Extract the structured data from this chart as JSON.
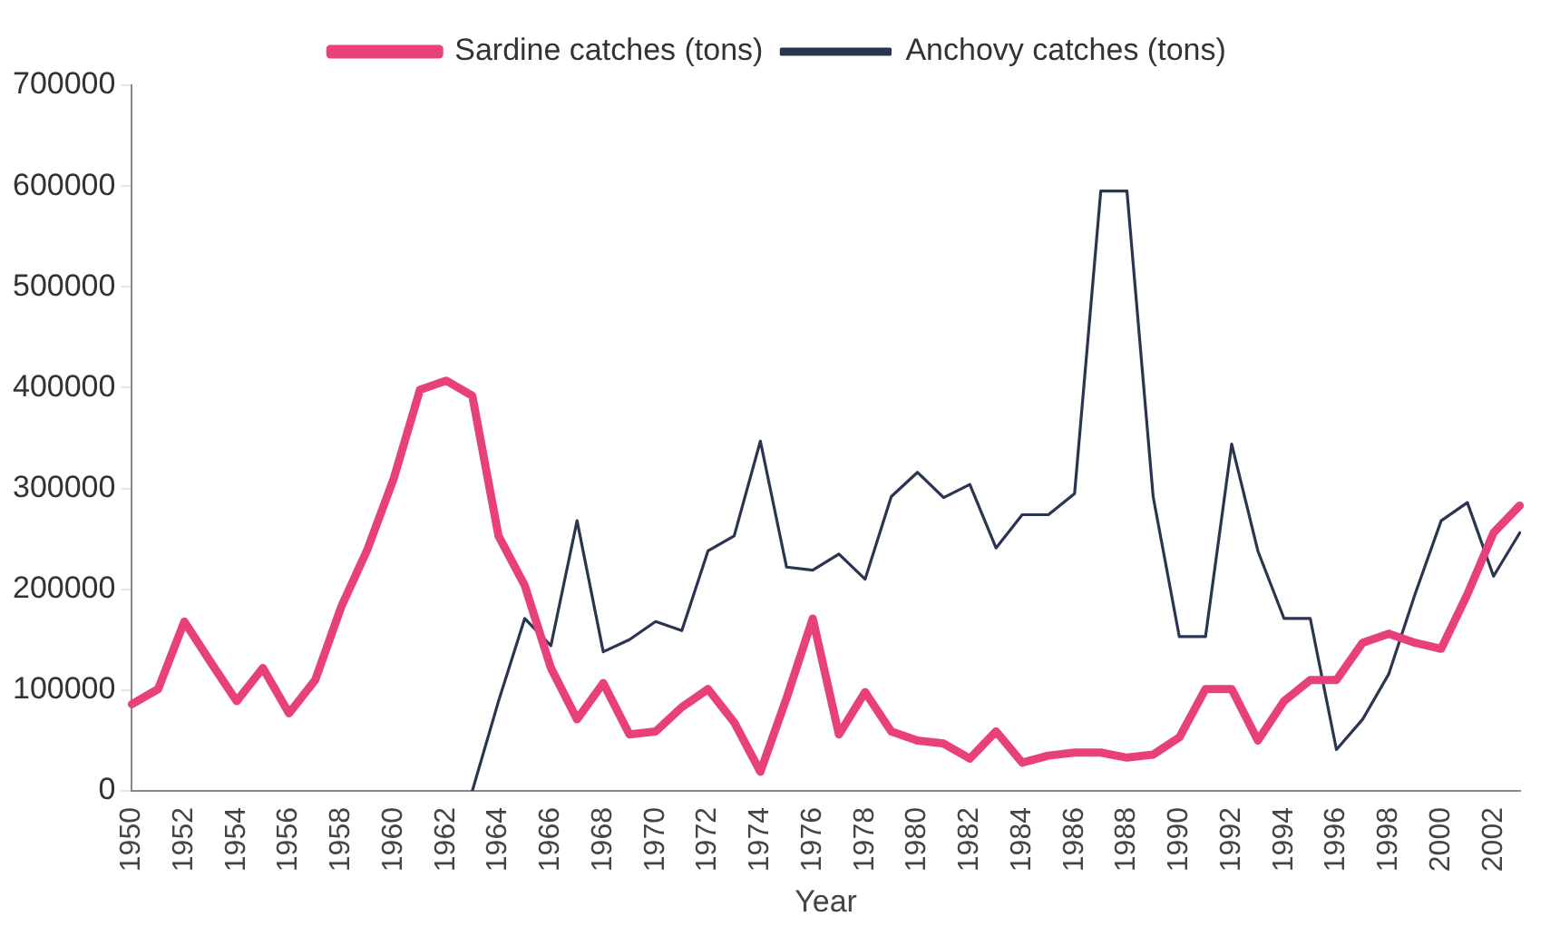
{
  "chart_data": {
    "type": "line",
    "xlabel": "Year",
    "categories": [
      "1950",
      null,
      "1952",
      null,
      "1954",
      null,
      "1956",
      null,
      "1958",
      null,
      "1960",
      null,
      "1962",
      null,
      "1964",
      null,
      "1966",
      null,
      "1968",
      null,
      "1970",
      null,
      "1972",
      null,
      "1974",
      null,
      "1976",
      null,
      "1978",
      null,
      "1980",
      null,
      "1982",
      null,
      "1984",
      null,
      "1986",
      null,
      "1988",
      null,
      "1990",
      null,
      "1992",
      null,
      "1994",
      null,
      "1996",
      null,
      "1998",
      null,
      "2000",
      null,
      "2002",
      null
    ],
    "series": [
      {
        "name": "Sardine catches (tons)",
        "color": "#e8407a",
        "values": [
          86000,
          101000,
          168000,
          128000,
          89000,
          122000,
          77000,
          110000,
          183000,
          240000,
          310000,
          398000,
          407000,
          392000,
          253000,
          204000,
          122000,
          71000,
          107000,
          56000,
          59000,
          83000,
          101000,
          68000,
          19000,
          92000,
          171000,
          56000,
          98000,
          59000,
          50000,
          47000,
          32000,
          59000,
          28000,
          35000,
          38000,
          38000,
          33000,
          36000,
          53000,
          101000,
          101000,
          50000,
          89000,
          110000,
          110000,
          147000,
          156000,
          147000,
          141000,
          195000,
          256000,
          283000
        ]
      },
      {
        "name": "Anchovy catches (tons)",
        "color": "#2a3550",
        "values": [
          null,
          null,
          null,
          null,
          null,
          null,
          null,
          null,
          null,
          null,
          null,
          null,
          null,
          0,
          89000,
          171000,
          144000,
          268000,
          138000,
          150000,
          168000,
          159000,
          238000,
          253000,
          347000,
          222000,
          219000,
          235000,
          210000,
          292000,
          316000,
          291000,
          304000,
          241000,
          274000,
          274000,
          295000,
          595000,
          595000,
          292000,
          153000,
          153000,
          344000,
          238000,
          171000,
          171000,
          41000,
          71000,
          116000,
          195000,
          268000,
          286000,
          213000,
          256000
        ]
      }
    ],
    "ylim": [
      0,
      700000
    ],
    "yticks": [
      0,
      100000,
      200000,
      300000,
      400000,
      500000,
      600000,
      700000
    ],
    "grid": false,
    "legend": "top",
    "marker": "none",
    "line_style": "solid"
  }
}
